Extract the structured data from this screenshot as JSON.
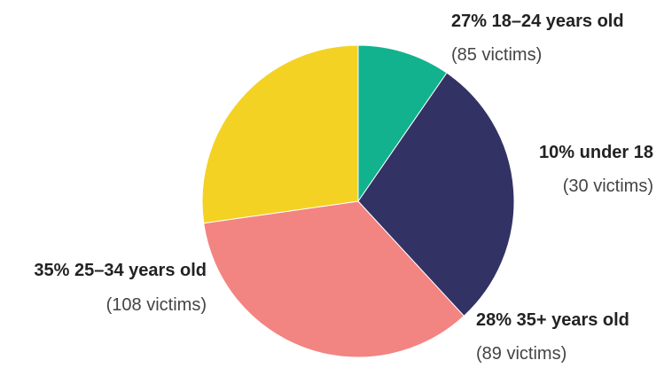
{
  "chart_data": {
    "type": "pie",
    "title": "",
    "start_angle_deg": 90,
    "direction": "clockwise",
    "slices": [
      {
        "label": "10% under 18",
        "value": 30,
        "percent": 10,
        "count_label": "(30 victims)",
        "color": "#12b28e"
      },
      {
        "label": "28% 35+ years old",
        "value": 89,
        "percent": 28,
        "count_label": "(89 victims)",
        "color": "#333264"
      },
      {
        "label": "35% 25–34 years old",
        "value": 108,
        "percent": 35,
        "count_label": "(108 victims)",
        "color": "#f28482"
      },
      {
        "label": "27% 18–24 years old",
        "value": 85,
        "percent": 27,
        "count_label": "(85 victims)",
        "color": "#f4d223"
      }
    ]
  }
}
